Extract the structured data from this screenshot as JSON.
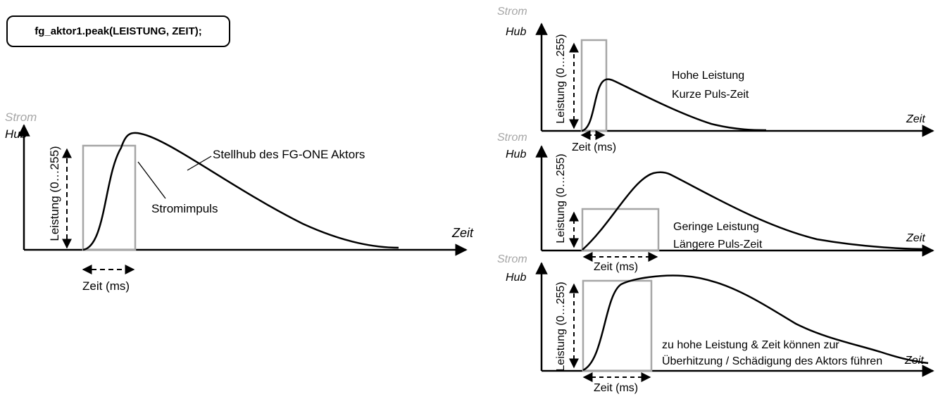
{
  "code": "fg_aktor1.peak(LEISTUNG, ZEIT);",
  "colors": {
    "axis": "#000000",
    "pulse": "#a6a6a6",
    "curve": "#000000",
    "strom_label": "#a6a6a6"
  },
  "main": {
    "strom": "Strom",
    "hub": "Hub",
    "leistung": "Leistung (0…255)",
    "zeit_axis": "Zeit",
    "zeit_ms": "Zeit (ms)",
    "curve_label": "Stellhub des FG-ONE Aktors",
    "pulse_label": "Stromimpuls"
  },
  "panels": [
    {
      "strom": "Strom",
      "hub": "Hub",
      "leistung": "Leistung (0…255)",
      "zeit_axis": "Zeit",
      "zeit_ms": "Zeit (ms)",
      "note_lines": [
        "Hohe Leistung",
        "Kurze Puls-Zeit"
      ]
    },
    {
      "strom": "Strom",
      "hub": "Hub",
      "leistung": "Leistung (0…255)",
      "zeit_axis": "Zeit",
      "zeit_ms": "Zeit (ms)",
      "note_lines": [
        "Geringe Leistung",
        "Längere Puls-Zeit"
      ]
    },
    {
      "strom": "Strom",
      "hub": "Hub",
      "leistung": "Leistung (0…255)",
      "zeit_axis": "Zeit",
      "zeit_ms": "Zeit (ms)",
      "note_lines": [
        "zu hohe Leistung & Zeit können zur",
        "Überhitzung / Schädigung des Aktors führen"
      ]
    }
  ]
}
